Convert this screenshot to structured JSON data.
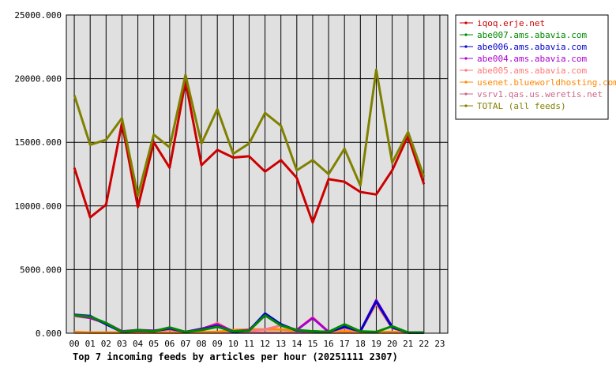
{
  "chart_data": {
    "type": "line",
    "title": "Top 7 incoming feeds by articles per hour (20251111 2307)",
    "x_ticks": [
      "00",
      "01",
      "02",
      "03",
      "04",
      "05",
      "06",
      "07",
      "08",
      "09",
      "10",
      "11",
      "12",
      "13",
      "14",
      "15",
      "16",
      "17",
      "18",
      "19",
      "20",
      "21",
      "22",
      "23"
    ],
    "y_ticks": [
      "0.000",
      "5000.000",
      "10000.000",
      "15000.000",
      "20000.000",
      "25000.000"
    ],
    "ylim": [
      0,
      25000
    ],
    "grid": true,
    "legend_position": "right",
    "series": [
      {
        "name": "iqoq.erje.net",
        "color": "#cc0000",
        "values": [
          13000,
          9100,
          10100,
          16500,
          9900,
          15000,
          13000,
          19800,
          13200,
          14400,
          13800,
          13900,
          12700,
          13600,
          12200,
          8700,
          12100,
          11900,
          11100,
          10900,
          12800,
          15500,
          11700
        ]
      },
      {
        "name": "abe007.ams.abavia.com",
        "color": "#008800",
        "values": [
          1400,
          1300,
          800,
          100,
          250,
          150,
          450,
          100,
          250,
          500,
          150,
          200,
          1400,
          600,
          250,
          150,
          100,
          700,
          150,
          100,
          550,
          50,
          50
        ]
      },
      {
        "name": "abe006.ams.abavia.com",
        "color": "#0000cc",
        "values": [
          1450,
          1350,
          700,
          100,
          200,
          150,
          400,
          100,
          300,
          550,
          100,
          200,
          1550,
          700,
          200,
          150,
          100,
          500,
          150,
          2500,
          450,
          50,
          50
        ]
      },
      {
        "name": "abe004.ams.abavia.com",
        "color": "#aa00cc",
        "values": [
          1400,
          1200,
          800,
          150,
          250,
          200,
          350,
          100,
          350,
          700,
          150,
          250,
          1450,
          650,
          250,
          1200,
          100,
          500,
          150,
          2600,
          500,
          50,
          50
        ]
      },
      {
        "name": "abe005.ams.abavia.com",
        "color": "#ff7777",
        "values": [
          1350,
          1200,
          750,
          100,
          250,
          150,
          300,
          100,
          300,
          800,
          100,
          200,
          300,
          600,
          250,
          1250,
          100,
          400,
          150,
          2300,
          400,
          50,
          50
        ]
      },
      {
        "name": "usenet.blueworldhosting.com",
        "color": "#ff8800",
        "values": [
          100,
          50,
          50,
          50,
          50,
          50,
          50,
          50,
          100,
          100,
          250,
          300,
          300,
          300,
          200,
          150,
          100,
          150,
          100,
          100,
          100,
          50,
          50
        ]
      },
      {
        "name": "vsrv1.qas.us.weretis.net",
        "color": "#cc6688",
        "values": [
          50,
          50,
          50,
          50,
          50,
          50,
          50,
          50,
          50,
          50,
          50,
          50,
          50,
          50,
          50,
          50,
          50,
          50,
          50,
          50,
          50,
          50,
          50
        ]
      },
      {
        "name": "TOTAL (all feeds)",
        "color": "#808000",
        "values": [
          18700,
          14800,
          15200,
          16900,
          10800,
          15600,
          14600,
          20300,
          14900,
          17600,
          14100,
          14900,
          17300,
          16300,
          12800,
          13600,
          12500,
          14500,
          11600,
          20700,
          13400,
          15800,
          12300
        ]
      }
    ]
  }
}
